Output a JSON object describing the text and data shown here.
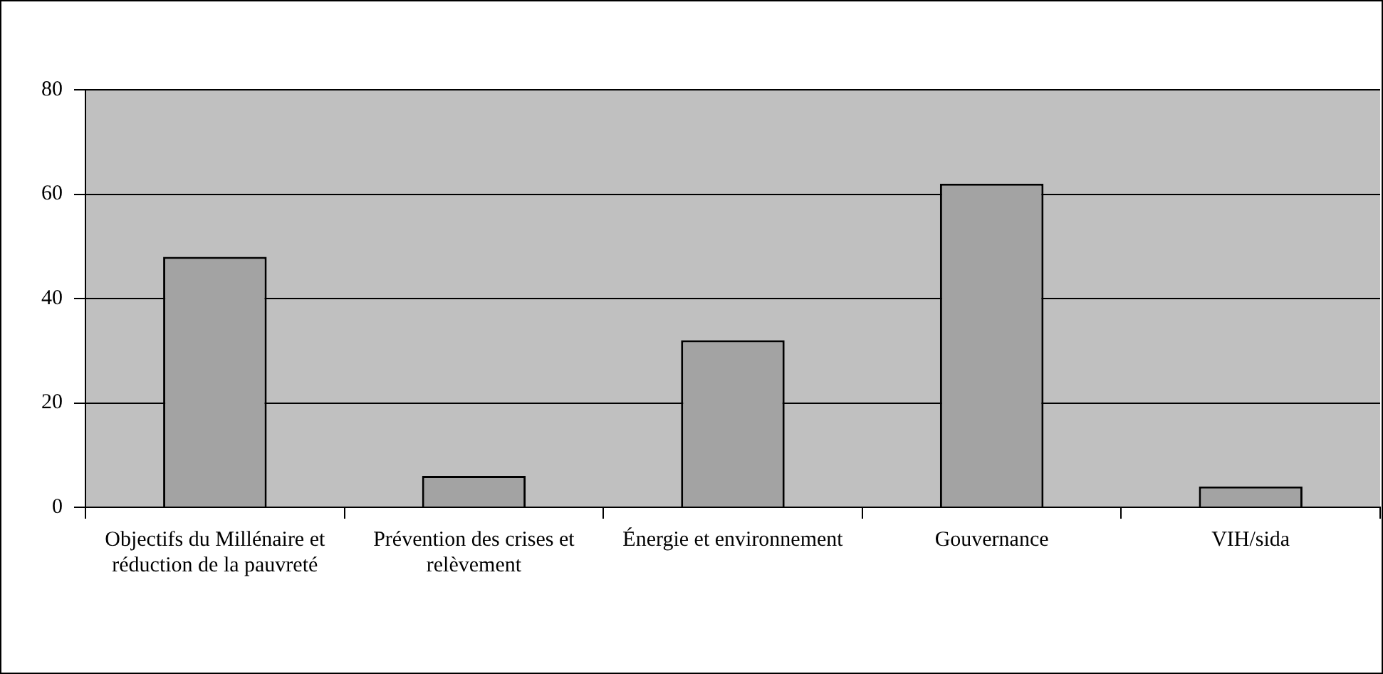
{
  "chart_data": {
    "type": "bar",
    "categories": [
      "Objectifs du Millénaire et réduction de la pauvreté",
      "Prévention des crises et relèvement",
      "Énergie et environnement",
      "Gouvernance",
      "VIH/sida"
    ],
    "values": [
      48,
      6,
      32,
      62,
      4
    ],
    "color": "#a3a3a3",
    "ylim": [
      0,
      80
    ],
    "yticks": [
      0,
      20,
      40,
      60,
      80
    ],
    "grid": "y",
    "legend": false
  }
}
